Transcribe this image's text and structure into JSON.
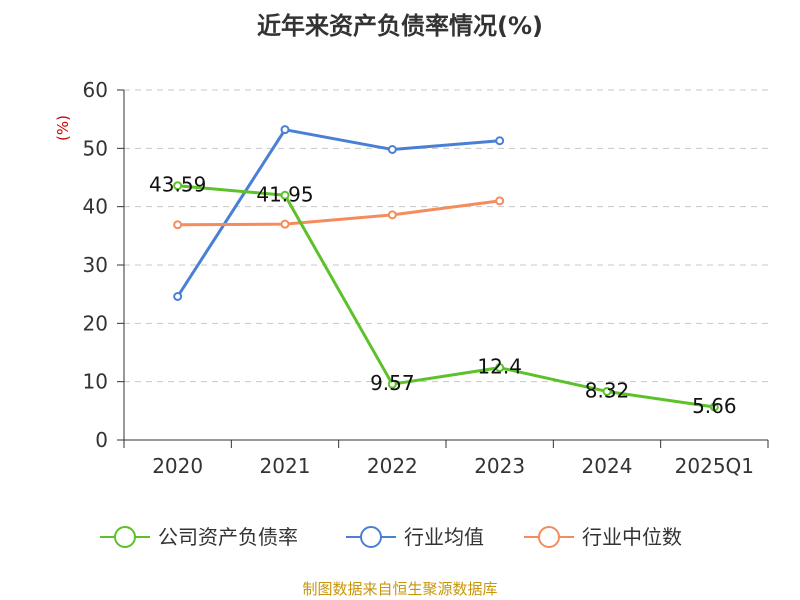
{
  "chart_data": {
    "type": "line",
    "title": "近年来资产负债率情况(%)",
    "ylabel": "(%)",
    "xlabel": "",
    "categories": [
      "2020",
      "2021",
      "2022",
      "2023",
      "2024",
      "2025Q1"
    ],
    "ylim": [
      0,
      60
    ],
    "yticks": [
      0,
      10,
      20,
      30,
      40,
      50,
      60
    ],
    "grid": true,
    "legend_position": "bottom",
    "series": [
      {
        "name": "公司资产负债率",
        "color": "#5cc12a",
        "values": [
          43.59,
          41.95,
          9.57,
          12.4,
          8.32,
          5.66
        ],
        "labels": [
          "43.59",
          "41.95",
          "9.57",
          "12.4",
          "8.32",
          "5.66"
        ]
      },
      {
        "name": "行业均值",
        "color": "#4a7fd6",
        "values": [
          24.6,
          53.2,
          49.8,
          51.3,
          null,
          null
        ]
      },
      {
        "name": "行业中位数",
        "color": "#f48c5b",
        "values": [
          36.9,
          37.0,
          38.6,
          41.0,
          null,
          null
        ]
      }
    ]
  },
  "source_note": "制图数据来自恒生聚源数据库"
}
